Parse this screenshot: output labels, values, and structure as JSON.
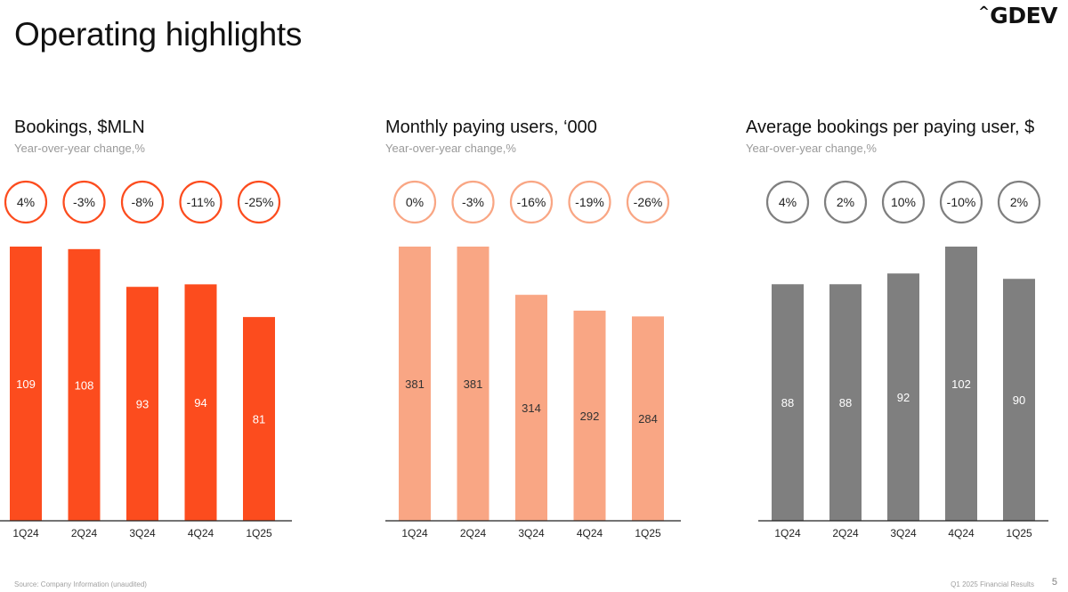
{
  "page": {
    "title": "Operating highlights",
    "logo_text": "GDEV",
    "footer_source": "Source: Company Information (unaudited)",
    "footer_right": "Q1 2025 Financial Results",
    "page_number": "5"
  },
  "colors": {
    "bookings": "#fc4c1e",
    "users": "#f9a684",
    "abppu": "#7f7f7f",
    "axis": "#222222"
  },
  "chart_data": [
    {
      "type": "bar",
      "title": "Bookings, $MLN",
      "subtitle": "Year-over-year change,%",
      "categories": [
        "1Q24",
        "2Q24",
        "3Q24",
        "4Q24",
        "1Q25"
      ],
      "values": [
        109,
        108,
        93,
        94,
        81
      ],
      "yoy_change": [
        "4%",
        "-3%",
        "-8%",
        "-11%",
        "-25%"
      ],
      "ylim": [
        0,
        109
      ],
      "grid": false,
      "legend": "none"
    },
    {
      "type": "bar",
      "title": "Monthly paying users, ‘000",
      "subtitle": "Year-over-year change,%",
      "categories": [
        "1Q24",
        "2Q24",
        "3Q24",
        "4Q24",
        "1Q25"
      ],
      "values": [
        381,
        381,
        314,
        292,
        284
      ],
      "yoy_change": [
        "0%",
        "-3%",
        "-16%",
        "-19%",
        "-26%"
      ],
      "ylim": [
        0,
        381
      ],
      "grid": false,
      "legend": "none"
    },
    {
      "type": "bar",
      "title": "Average bookings per paying user, $",
      "subtitle": "Year-over-year change,%",
      "categories": [
        "1Q24",
        "2Q24",
        "3Q24",
        "4Q24",
        "1Q25"
      ],
      "values": [
        88,
        88,
        92,
        102,
        90
      ],
      "yoy_change": [
        "4%",
        "2%",
        "10%",
        "-10%",
        "2%"
      ],
      "ylim": [
        0,
        102
      ],
      "grid": false,
      "legend": "none"
    }
  ]
}
